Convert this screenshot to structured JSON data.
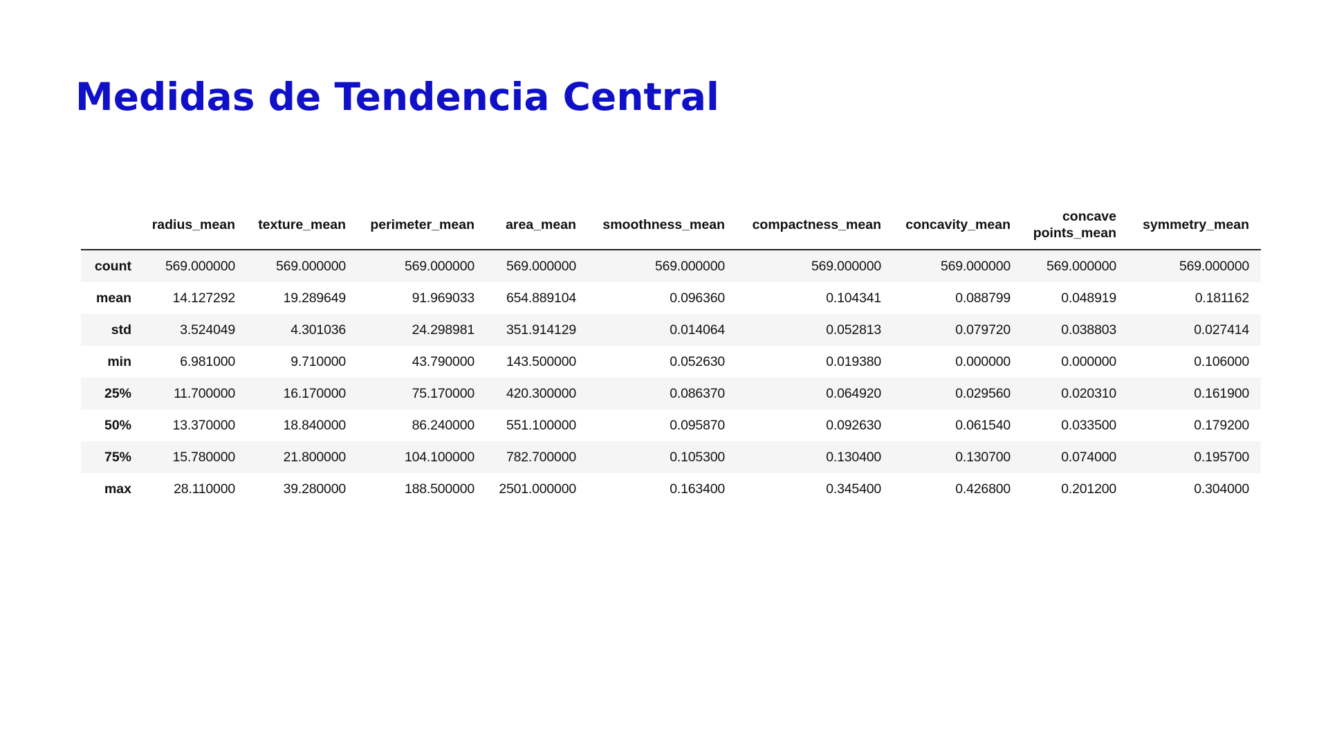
{
  "title": "Medidas de Tendencia Central",
  "table": {
    "columns": [
      "radius_mean",
      "texture_mean",
      "perimeter_mean",
      "area_mean",
      "smoothness_mean",
      "compactness_mean",
      "concavity_mean",
      "concave points_mean",
      "symmetry_mean"
    ],
    "rows": [
      {
        "label": "count",
        "values": [
          "569.000000",
          "569.000000",
          "569.000000",
          "569.000000",
          "569.000000",
          "569.000000",
          "569.000000",
          "569.000000",
          "569.000000"
        ]
      },
      {
        "label": "mean",
        "values": [
          "14.127292",
          "19.289649",
          "91.969033",
          "654.889104",
          "0.096360",
          "0.104341",
          "0.088799",
          "0.048919",
          "0.181162"
        ]
      },
      {
        "label": "std",
        "values": [
          "3.524049",
          "4.301036",
          "24.298981",
          "351.914129",
          "0.014064",
          "0.052813",
          "0.079720",
          "0.038803",
          "0.027414"
        ]
      },
      {
        "label": "min",
        "values": [
          "6.981000",
          "9.710000",
          "43.790000",
          "143.500000",
          "0.052630",
          "0.019380",
          "0.000000",
          "0.000000",
          "0.106000"
        ]
      },
      {
        "label": "25%",
        "values": [
          "11.700000",
          "16.170000",
          "75.170000",
          "420.300000",
          "0.086370",
          "0.064920",
          "0.029560",
          "0.020310",
          "0.161900"
        ]
      },
      {
        "label": "50%",
        "values": [
          "13.370000",
          "18.840000",
          "86.240000",
          "551.100000",
          "0.095870",
          "0.092630",
          "0.061540",
          "0.033500",
          "0.179200"
        ]
      },
      {
        "label": "75%",
        "values": [
          "15.780000",
          "21.800000",
          "104.100000",
          "782.700000",
          "0.105300",
          "0.130400",
          "0.130700",
          "0.074000",
          "0.195700"
        ]
      },
      {
        "label": "max",
        "values": [
          "28.110000",
          "39.280000",
          "188.500000",
          "2501.000000",
          "0.163400",
          "0.345400",
          "0.426800",
          "0.201200",
          "0.304000"
        ]
      }
    ]
  }
}
